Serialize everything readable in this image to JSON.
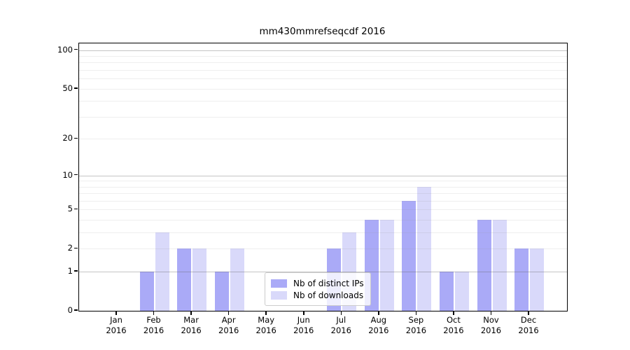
{
  "chart": {
    "title": "mm430mmrefseqcdf 2016"
  },
  "chart_data": {
    "type": "bar",
    "title": "mm430mmrefseqcdf 2016",
    "scale": "log1p",
    "categories": [
      "Jan",
      "Feb",
      "Mar",
      "Apr",
      "May",
      "Jun",
      "Jul",
      "Aug",
      "Sep",
      "Oct",
      "Nov",
      "Dec"
    ],
    "year": "2016",
    "series": [
      {
        "name": "Nb of distinct IPs",
        "color": "#aaaaf7",
        "values": [
          0,
          1,
          2,
          1,
          0,
          0,
          2,
          4,
          6,
          1,
          4,
          2
        ]
      },
      {
        "name": "Nb of downloads",
        "color": "#d9d9fa",
        "values": [
          0,
          3,
          2,
          2,
          0,
          0,
          3,
          4,
          8,
          1,
          4,
          2
        ]
      }
    ],
    "xlabel": "",
    "ylabel": "",
    "ylim": [
      0,
      113
    ],
    "yticks": [
      0,
      1,
      2,
      5,
      10,
      20,
      50,
      100
    ],
    "major_grid_values": [
      1,
      10,
      100
    ],
    "minor_grid_values": [
      2,
      3,
      4,
      5,
      6,
      7,
      8,
      9,
      20,
      30,
      40,
      50,
      60,
      70,
      80,
      90
    ],
    "grid": "on",
    "legend_position": "lower center"
  }
}
